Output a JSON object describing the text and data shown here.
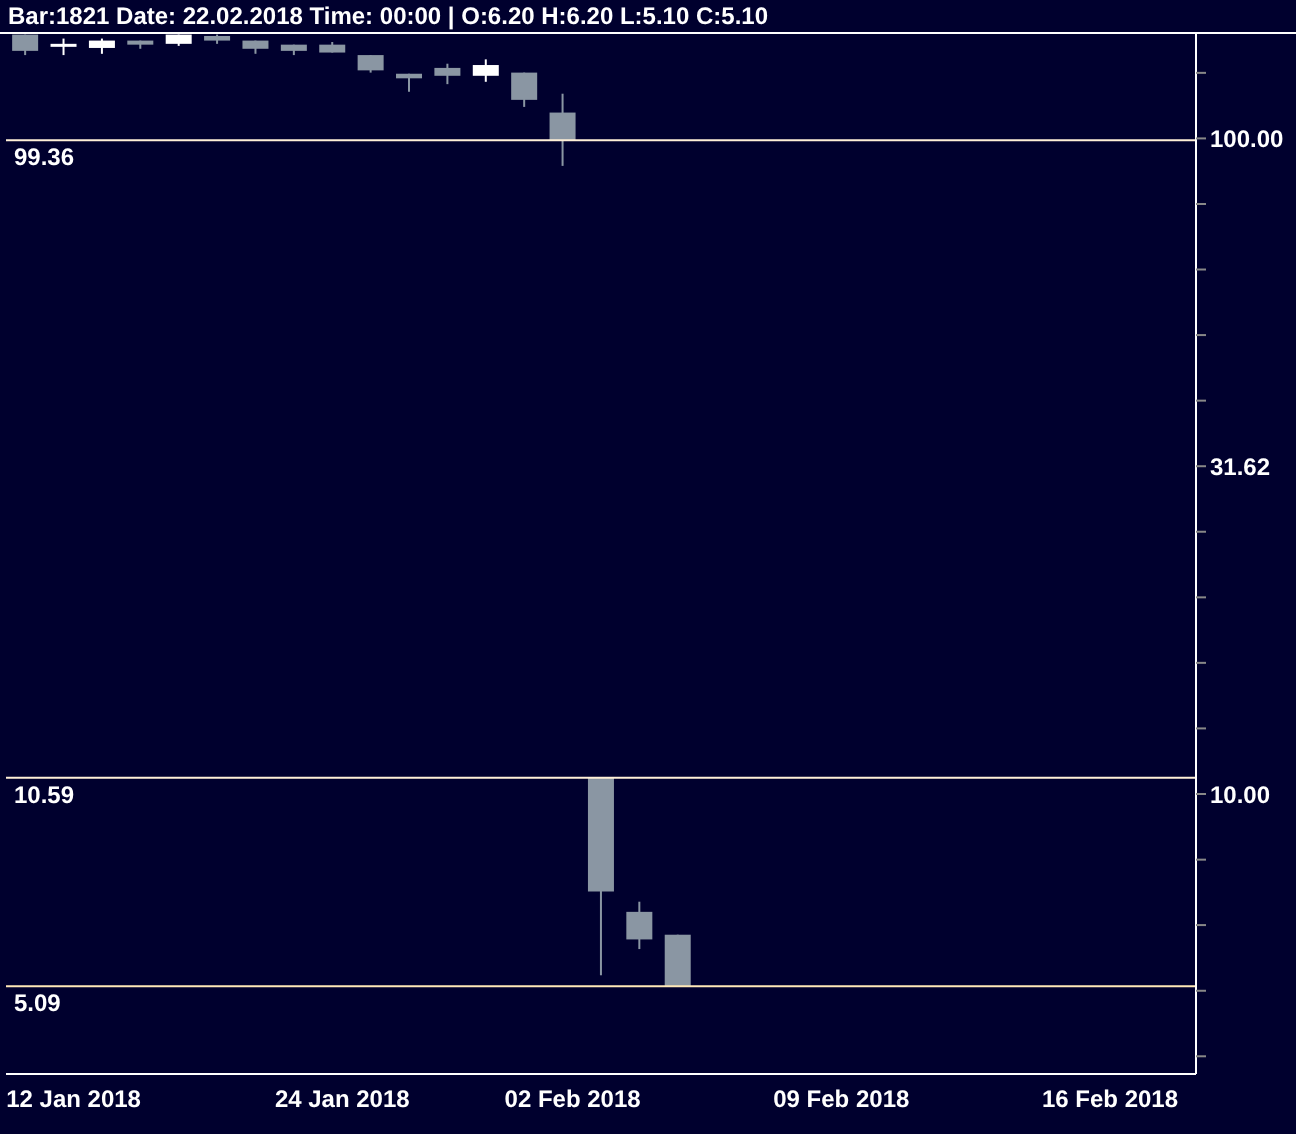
{
  "chart_data": {
    "type": "candlestick",
    "title": "Bar:1821 Date: 22.02.2018 Time: 00:00 | O:6.20 H:6.20 L:5.10 C:5.10",
    "categories": [
      null,
      "12 Jan 2018",
      null,
      null,
      null,
      null,
      null,
      null,
      "24 Jan 2018",
      null,
      null,
      null,
      null,
      null,
      "02 Feb 2018",
      null,
      null,
      null,
      null,
      null,
      null,
      "09 Feb 2018",
      null,
      null,
      null,
      null,
      null,
      null,
      "16 Feb 2018",
      null,
      null
    ],
    "ohlc": [
      [
        144,
        144,
        134,
        136
      ],
      [
        139.4,
        142,
        134,
        139.4
      ],
      [
        137.4,
        142,
        134.6,
        141
      ],
      [
        141,
        141,
        137,
        139
      ],
      [
        139.4,
        144,
        138.4,
        144
      ],
      [
        143.3,
        144,
        139.4,
        141
      ],
      [
        141,
        141,
        134.6,
        137
      ],
      [
        139,
        139,
        134,
        136
      ],
      [
        139,
        140.3,
        135.2,
        135.2
      ],
      [
        134,
        134,
        126,
        127
      ],
      [
        125.5,
        125.5,
        117.8,
        123.5
      ],
      [
        128.1,
        130,
        121,
        124.6
      ],
      [
        124.6,
        132,
        122,
        129.4
      ],
      [
        126,
        126,
        111.7,
        114.5
      ],
      [
        109.5,
        117,
        90.8,
        99.36
      ],
      [
        10.59,
        10.59,
        5.29,
        7.1
      ],
      [
        6.61,
        6.85,
        5.8,
        6.0
      ],
      [
        6.1,
        6.1,
        5.09,
        5.09
      ],
      null,
      null,
      null,
      null,
      null,
      null,
      null,
      null,
      null,
      null,
      null,
      null,
      null
    ],
    "colors": [
      "#8a96a3",
      "#ffffff",
      "#ffffff",
      "#8a96a3",
      "#ffffff",
      "#8a96a3",
      "#8a96a3",
      "#8a96a3",
      "#8a96a3",
      "#8a96a3",
      "#8a96a3",
      "#8a96a3",
      "#ffffff",
      "#8a96a3",
      "#8a96a3",
      "#8a96a3",
      "#8a96a3",
      "#8a96a3",
      null,
      null,
      null,
      null,
      null,
      null,
      null,
      null,
      null,
      null,
      null,
      null,
      null
    ],
    "log": true,
    "ylim": [
      3.74,
      144.3
    ],
    "yticks": [
      {
        "value": 125.89,
        "label": null
      },
      {
        "value": 100,
        "label": "100.00"
      },
      {
        "value": 79.43,
        "label": null
      },
      {
        "value": 63.1,
        "label": null
      },
      {
        "value": 50.12,
        "label": null
      },
      {
        "value": 39.81,
        "label": null
      },
      31.62,
      {
        "value": 25.12,
        "label": null
      },
      {
        "value": 19.95,
        "label": null
      },
      {
        "value": 15.85,
        "label": null
      },
      {
        "value": 12.59,
        "label": null
      },
      {
        "value": 10,
        "label": "10.00"
      },
      {
        "value": 7.94,
        "label": null
      },
      {
        "value": 6.31,
        "label": null
      },
      {
        "value": 5.01,
        "label": null
      },
      {
        "value": 3.98,
        "label": null
      }
    ],
    "ref_lines": [
      {
        "axis": "y",
        "value": 99.36,
        "label": "99.36",
        "color": "#fff0d8"
      },
      {
        "axis": "y",
        "value": 10.59,
        "label": "10.59",
        "color": "#fff0d8"
      },
      {
        "axis": "y",
        "value": 5.09,
        "label": "5.09",
        "color": "#ffe8b8"
      }
    ]
  }
}
